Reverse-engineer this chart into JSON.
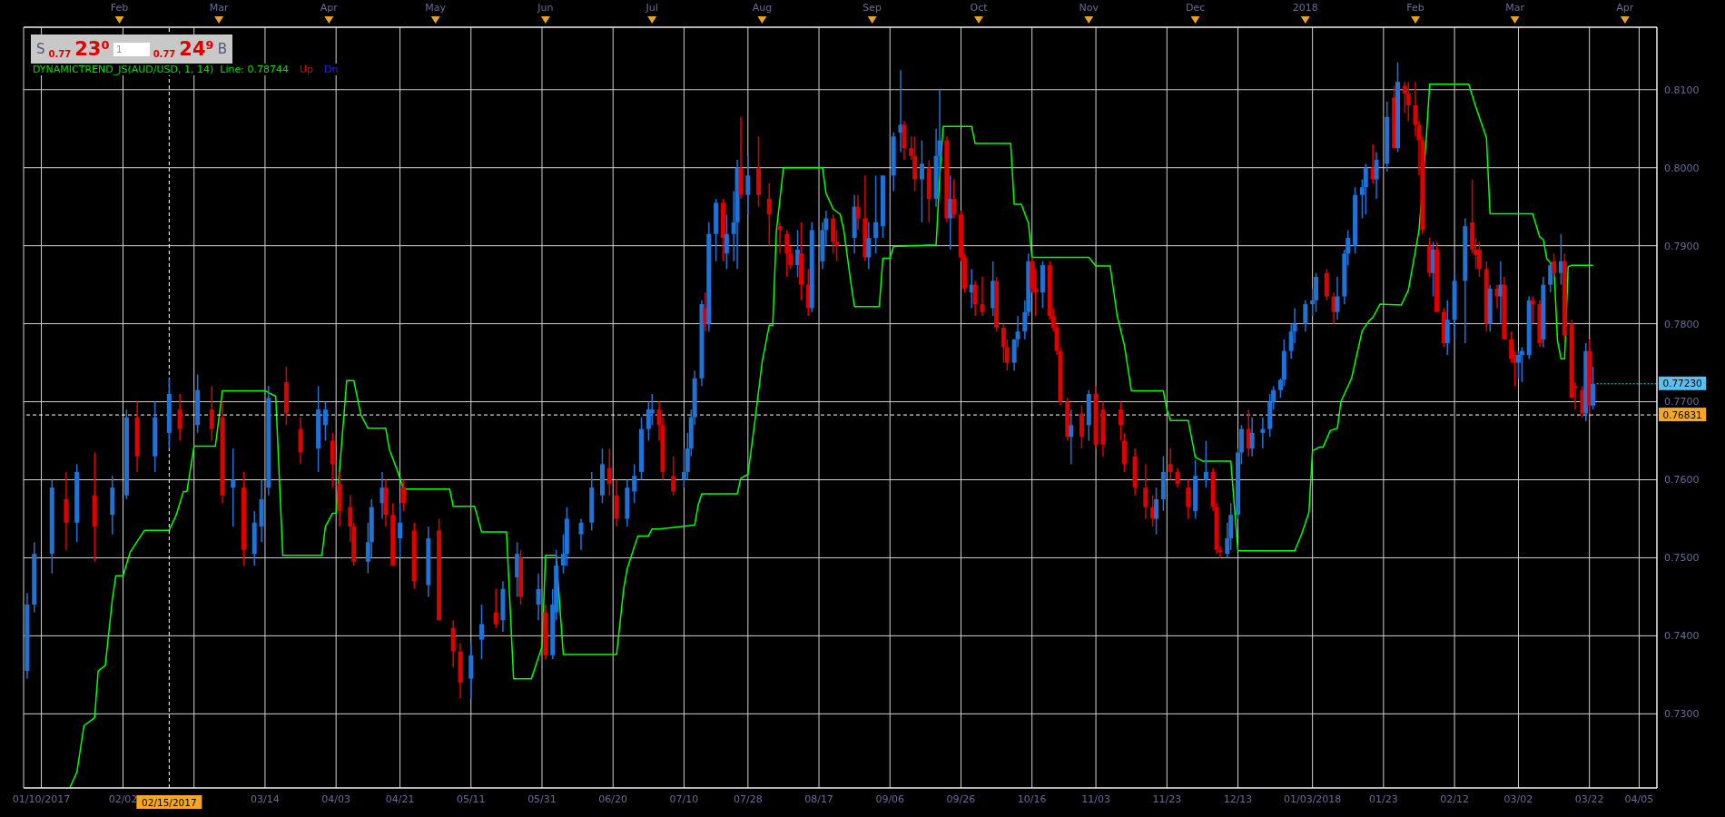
{
  "chart_data": {
    "type": "candlestick",
    "x": [
      "2017-01-06",
      "2017-01-08",
      "2017-01-13",
      "2017-01-17",
      "2017-01-20",
      "2017-01-25",
      "2017-01-30",
      "2017-02-03",
      "2017-02-06",
      "2017-02-11",
      "2017-02-15",
      "2017-02-18",
      "2017-02-23",
      "2017-02-27",
      "2017-03-02",
      "2017-03-05",
      "2017-03-08",
      "2017-03-11",
      "2017-03-13",
      "2017-03-15",
      "2017-03-20",
      "2017-03-24",
      "2017-03-29",
      "2017-03-31",
      "2017-04-02",
      "2017-04-04",
      "2017-04-07",
      "2017-04-08",
      "2017-04-12",
      "2017-04-13",
      "2017-04-16",
      "2017-04-17",
      "2017-04-19",
      "2017-04-21",
      "2017-04-22",
      "2017-04-25",
      "2017-04-29",
      "2017-05-02",
      "2017-05-06",
      "2017-05-08",
      "2017-05-11",
      "2017-05-14",
      "2017-05-18",
      "2017-05-20",
      "2017-05-24",
      "2017-05-25",
      "2017-05-30",
      "2017-06-01",
      "2017-06-03",
      "2017-06-04",
      "2017-06-06",
      "2017-06-07",
      "2017-06-11",
      "2017-06-14",
      "2017-06-17",
      "2017-06-19",
      "2017-06-21",
      "2017-06-24",
      "2017-06-26",
      "2017-06-28",
      "2017-06-30",
      "2017-07-01",
      "2017-07-03",
      "2017-07-04",
      "2017-07-07",
      "2017-07-10",
      "2017-07-11",
      "2017-07-12",
      "2017-07-13",
      "2017-07-15",
      "2017-07-16",
      "2017-07-17",
      "2017-07-19",
      "2017-07-21",
      "2017-07-22",
      "2017-07-24",
      "2017-07-25",
      "2017-07-26",
      "2017-07-28",
      "2017-07-31",
      "2017-08-03",
      "2017-08-06",
      "2017-08-08",
      "2017-08-09",
      "2017-08-11",
      "2017-08-12",
      "2017-08-14",
      "2017-08-15",
      "2017-08-18",
      "2017-08-19",
      "2017-08-21",
      "2017-08-22",
      "2017-08-27",
      "2017-08-28",
      "2017-08-30",
      "2017-08-31",
      "2017-09-02",
      "2017-09-04",
      "2017-09-07",
      "2017-09-09",
      "2017-09-10",
      "2017-09-12",
      "2017-09-13",
      "2017-09-15",
      "2017-09-17",
      "2017-09-19",
      "2017-09-20",
      "2017-09-22",
      "2017-09-23",
      "2017-09-24",
      "2017-09-26",
      "2017-09-27",
      "2017-09-29",
      "2017-09-30",
      "2017-10-02",
      "2017-10-05",
      "2017-10-06",
      "2017-10-08",
      "2017-10-09",
      "2017-10-11",
      "2017-10-12",
      "2017-10-14",
      "2017-10-15",
      "2017-10-16",
      "2017-10-17",
      "2017-10-19",
      "2017-10-21",
      "2017-10-22",
      "2017-10-23",
      "2017-10-24",
      "2017-10-26",
      "2017-10-27",
      "2017-10-30",
      "2017-11-01",
      "2017-11-03",
      "2017-11-05",
      "2017-11-10",
      "2017-11-11",
      "2017-11-14",
      "2017-11-17",
      "2017-11-19",
      "2017-11-20",
      "2017-11-22",
      "2017-11-24",
      "2017-11-26",
      "2017-11-29",
      "2017-12-01",
      "2017-12-04",
      "2017-12-06",
      "2017-12-07",
      "2017-12-08",
      "2017-12-10",
      "2017-12-11",
      "2017-12-13",
      "2017-12-14",
      "2017-12-16",
      "2017-12-17",
      "2017-12-20",
      "2017-12-22",
      "2017-12-23",
      "2017-12-25",
      "2017-12-26",
      "2017-12-28",
      "2017-12-29",
      "2018-01-01",
      "2018-01-03",
      "2018-01-04",
      "2018-01-07",
      "2018-01-09",
      "2018-01-10",
      "2018-01-12",
      "2018-01-13",
      "2018-01-15",
      "2018-01-17",
      "2018-01-18",
      "2018-01-20",
      "2018-01-21",
      "2018-01-24",
      "2018-01-26",
      "2018-01-27",
      "2018-01-29",
      "2018-01-30",
      "2018-02-01",
      "2018-02-02",
      "2018-02-03",
      "2018-02-05",
      "2018-02-06",
      "2018-02-07",
      "2018-02-09",
      "2018-02-10",
      "2018-02-12",
      "2018-02-15",
      "2018-02-17",
      "2018-02-18",
      "2018-02-19",
      "2018-02-21",
      "2018-02-22",
      "2018-02-24",
      "2018-02-25",
      "2018-02-26",
      "2018-02-28",
      "2018-03-01",
      "2018-03-02",
      "2018-03-03",
      "2018-03-05",
      "2018-03-06",
      "2018-03-08",
      "2018-03-09",
      "2018-03-11",
      "2018-03-12",
      "2018-03-14",
      "2018-03-15",
      "2018-03-17",
      "2018-03-18",
      "2018-03-20",
      "2018-03-21",
      "2018-03-22",
      "2018-03-23"
    ],
    "ohlc": [
      [
        0.7355,
        0.7455,
        0.7345,
        0.744
      ],
      [
        0.744,
        0.752,
        0.743,
        0.7505
      ],
      [
        0.7505,
        0.76,
        0.748,
        0.759
      ],
      [
        0.7575,
        0.761,
        0.751,
        0.7545
      ],
      [
        0.7545,
        0.762,
        0.752,
        0.761
      ],
      [
        0.758,
        0.7635,
        0.7495,
        0.754
      ],
      [
        0.7555,
        0.7605,
        0.753,
        0.759
      ],
      [
        0.758,
        0.769,
        0.7575,
        0.768
      ],
      [
        0.768,
        0.77,
        0.761,
        0.763
      ],
      [
        0.763,
        0.77,
        0.761,
        0.768
      ],
      [
        0.766,
        0.773,
        0.764,
        0.771
      ],
      [
        0.769,
        0.771,
        0.765,
        0.7665
      ],
      [
        0.767,
        0.7735,
        0.766,
        0.7715
      ],
      [
        0.769,
        0.772,
        0.765,
        0.7665
      ],
      [
        0.768,
        0.77,
        0.757,
        0.758
      ],
      [
        0.759,
        0.764,
        0.754,
        0.76
      ],
      [
        0.759,
        0.761,
        0.749,
        0.751
      ],
      [
        0.7505,
        0.756,
        0.749,
        0.7545
      ],
      [
        0.754,
        0.76,
        0.752,
        0.7575
      ],
      [
        0.759,
        0.772,
        0.758,
        0.7705
      ],
      [
        0.7725,
        0.7745,
        0.767,
        0.7685
      ],
      [
        0.7665,
        0.768,
        0.762,
        0.7635
      ],
      [
        0.764,
        0.772,
        0.761,
        0.769
      ],
      [
        0.767,
        0.77,
        0.765,
        0.769
      ],
      [
        0.765,
        0.766,
        0.759,
        0.762
      ],
      [
        0.7595,
        0.761,
        0.754,
        0.756
      ],
      [
        0.7565,
        0.758,
        0.752,
        0.754
      ],
      [
        0.754,
        0.7545,
        0.749,
        0.7495
      ],
      [
        0.7495,
        0.7545,
        0.748,
        0.752
      ],
      [
        0.752,
        0.7575,
        0.75,
        0.7565
      ],
      [
        0.757,
        0.761,
        0.755,
        0.759
      ],
      [
        0.759,
        0.76,
        0.754,
        0.7555
      ],
      [
        0.7555,
        0.757,
        0.749,
        0.749
      ],
      [
        0.7525,
        0.757,
        0.75,
        0.7545
      ],
      [
        0.759,
        0.76,
        0.756,
        0.757
      ],
      [
        0.7535,
        0.7545,
        0.746,
        0.747
      ],
      [
        0.7465,
        0.754,
        0.745,
        0.7525
      ],
      [
        0.7535,
        0.755,
        0.742,
        0.742
      ],
      [
        0.741,
        0.742,
        0.736,
        0.738
      ],
      [
        0.738,
        0.739,
        0.732,
        0.734
      ],
      [
        0.7345,
        0.739,
        0.732,
        0.7375
      ],
      [
        0.7395,
        0.744,
        0.737,
        0.7415
      ],
      [
        0.743,
        0.746,
        0.741,
        0.7415
      ],
      [
        0.742,
        0.747,
        0.7405,
        0.746
      ],
      [
        0.7475,
        0.752,
        0.745,
        0.7505
      ],
      [
        0.75,
        0.751,
        0.744,
        0.745
      ],
      [
        0.744,
        0.748,
        0.742,
        0.746
      ],
      [
        0.743,
        0.744,
        0.737,
        0.7375
      ],
      [
        0.7375,
        0.746,
        0.737,
        0.744
      ],
      [
        0.743,
        0.751,
        0.742,
        0.749
      ],
      [
        0.749,
        0.753,
        0.748,
        0.7505
      ],
      [
        0.7505,
        0.7565,
        0.749,
        0.755
      ],
      [
        0.753,
        0.755,
        0.751,
        0.7545
      ],
      [
        0.7545,
        0.761,
        0.7535,
        0.759
      ],
      [
        0.758,
        0.764,
        0.757,
        0.762
      ],
      [
        0.7615,
        0.764,
        0.758,
        0.7595
      ],
      [
        0.758,
        0.76,
        0.754,
        0.755
      ],
      [
        0.755,
        0.76,
        0.754,
        0.759
      ],
      [
        0.7585,
        0.762,
        0.757,
        0.7605
      ],
      [
        0.761,
        0.768,
        0.76,
        0.7665
      ],
      [
        0.7665,
        0.77,
        0.765,
        0.769
      ],
      [
        0.7685,
        0.771,
        0.767,
        0.769
      ],
      [
        0.769,
        0.77,
        0.765,
        0.767
      ],
      [
        0.767,
        0.768,
        0.76,
        0.761
      ],
      [
        0.7605,
        0.763,
        0.758,
        0.7585
      ],
      [
        0.76,
        0.764,
        0.759,
        0.761
      ],
      [
        0.761,
        0.766,
        0.76,
        0.764
      ],
      [
        0.764,
        0.769,
        0.763,
        0.768
      ],
      [
        0.768,
        0.774,
        0.767,
        0.773
      ],
      [
        0.773,
        0.783,
        0.772,
        0.7825
      ],
      [
        0.782,
        0.784,
        0.779,
        0.78
      ],
      [
        0.78,
        0.793,
        0.779,
        0.7915
      ],
      [
        0.7915,
        0.796,
        0.788,
        0.7955
      ],
      [
        0.7955,
        0.796,
        0.788,
        0.791
      ],
      [
        0.789,
        0.794,
        0.787,
        0.7915
      ],
      [
        0.7915,
        0.797,
        0.788,
        0.793
      ],
      [
        0.793,
        0.801,
        0.787,
        0.8
      ],
      [
        0.8,
        0.8065,
        0.796,
        0.7965
      ],
      [
        0.7965,
        0.8015,
        0.794,
        0.799
      ],
      [
        0.8,
        0.804,
        0.795,
        0.7965
      ],
      [
        0.796,
        0.798,
        0.79,
        0.794
      ],
      [
        0.7925,
        0.793,
        0.789,
        0.792
      ],
      [
        0.7915,
        0.792,
        0.786,
        0.789
      ],
      [
        0.789,
        0.79,
        0.787,
        0.7875
      ],
      [
        0.7875,
        0.792,
        0.786,
        0.7895
      ],
      [
        0.789,
        0.793,
        0.783,
        0.785
      ],
      [
        0.785,
        0.787,
        0.781,
        0.782
      ],
      [
        0.782,
        0.793,
        0.7815,
        0.792
      ],
      [
        0.788,
        0.793,
        0.787,
        0.792
      ],
      [
        0.792,
        0.7945,
        0.79,
        0.7935
      ],
      [
        0.7935,
        0.794,
        0.789,
        0.7905
      ],
      [
        0.7905,
        0.792,
        0.788,
        0.79
      ],
      [
        0.791,
        0.7965,
        0.789,
        0.795
      ],
      [
        0.795,
        0.7965,
        0.792,
        0.7935
      ],
      [
        0.7935,
        0.799,
        0.788,
        0.7885
      ],
      [
        0.7885,
        0.793,
        0.787,
        0.791
      ],
      [
        0.791,
        0.799,
        0.789,
        0.793
      ],
      [
        0.7925,
        0.799,
        0.791,
        0.799
      ],
      [
        0.799,
        0.8045,
        0.797,
        0.804
      ],
      [
        0.8045,
        0.8125,
        0.802,
        0.8055
      ],
      [
        0.8055,
        0.806,
        0.801,
        0.8025
      ],
      [
        0.8025,
        0.804,
        0.801,
        0.8015
      ],
      [
        0.8015,
        0.804,
        0.797,
        0.7985
      ],
      [
        0.7985,
        0.8035,
        0.793,
        0.8005
      ],
      [
        0.8,
        0.801,
        0.793,
        0.796
      ],
      [
        0.796,
        0.805,
        0.795,
        0.8015
      ],
      [
        0.8015,
        0.81,
        0.799,
        0.8035
      ],
      [
        0.8035,
        0.804,
        0.793,
        0.7935
      ],
      [
        0.7935,
        0.799,
        0.7895,
        0.796
      ],
      [
        0.796,
        0.7985,
        0.7935,
        0.794
      ],
      [
        0.794,
        0.7945,
        0.788,
        0.7885
      ],
      [
        0.7885,
        0.789,
        0.784,
        0.7845
      ],
      [
        0.784,
        0.787,
        0.782,
        0.785
      ],
      [
        0.785,
        0.7855,
        0.781,
        0.7825
      ],
      [
        0.7825,
        0.786,
        0.781,
        0.7815
      ],
      [
        0.782,
        0.788,
        0.781,
        0.7855
      ],
      [
        0.7855,
        0.786,
        0.779,
        0.7795
      ],
      [
        0.7795,
        0.78,
        0.775,
        0.777
      ],
      [
        0.777,
        0.778,
        0.774,
        0.775
      ],
      [
        0.775,
        0.778,
        0.774,
        0.778
      ],
      [
        0.778,
        0.781,
        0.777,
        0.779
      ],
      [
        0.779,
        0.783,
        0.778,
        0.7815
      ],
      [
        0.7815,
        0.789,
        0.781,
        0.788
      ],
      [
        0.788,
        0.7885,
        0.784,
        0.7845
      ],
      [
        0.7845,
        0.787,
        0.781,
        0.784
      ],
      [
        0.784,
        0.788,
        0.782,
        0.7875
      ],
      [
        0.7875,
        0.788,
        0.7805,
        0.781
      ],
      [
        0.781,
        0.782,
        0.779,
        0.7795
      ],
      [
        0.7795,
        0.78,
        0.776,
        0.7765
      ],
      [
        0.7765,
        0.777,
        0.7695,
        0.77
      ],
      [
        0.77,
        0.7705,
        0.765,
        0.7655
      ],
      [
        0.7655,
        0.769,
        0.762,
        0.767
      ],
      [
        0.7685,
        0.7695,
        0.764,
        0.7655
      ],
      [
        0.767,
        0.7715,
        0.765,
        0.771
      ],
      [
        0.771,
        0.772,
        0.764,
        0.7645
      ],
      [
        0.769,
        0.77,
        0.763,
        0.7645
      ],
      [
        0.769,
        0.77,
        0.765,
        0.767
      ],
      [
        0.765,
        0.766,
        0.761,
        0.762
      ],
      [
        0.763,
        0.764,
        0.758,
        0.759
      ],
      [
        0.759,
        0.762,
        0.755,
        0.7565
      ],
      [
        0.7565,
        0.758,
        0.754,
        0.755
      ],
      [
        0.755,
        0.759,
        0.753,
        0.7575
      ],
      [
        0.7575,
        0.763,
        0.756,
        0.761
      ],
      [
        0.762,
        0.764,
        0.76,
        0.761
      ],
      [
        0.761,
        0.7615,
        0.759,
        0.7595
      ],
      [
        0.759,
        0.76,
        0.755,
        0.7565
      ],
      [
        0.756,
        0.7625,
        0.755,
        0.7605
      ],
      [
        0.76,
        0.765,
        0.759,
        0.761
      ],
      [
        0.761,
        0.7615,
        0.756,
        0.7565
      ],
      [
        0.7565,
        0.757,
        0.7505,
        0.751
      ],
      [
        0.751,
        0.7515,
        0.75,
        0.7507
      ],
      [
        0.7505,
        0.7545,
        0.75,
        0.7525
      ],
      [
        0.7525,
        0.757,
        0.751,
        0.7555
      ],
      [
        0.7555,
        0.764,
        0.755,
        0.7635
      ],
      [
        0.7635,
        0.767,
        0.762,
        0.7665
      ],
      [
        0.7665,
        0.769,
        0.763,
        0.764
      ],
      [
        0.764,
        0.768,
        0.763,
        0.766
      ],
      [
        0.766,
        0.768,
        0.764,
        0.7665
      ],
      [
        0.7665,
        0.771,
        0.7655,
        0.77
      ],
      [
        0.77,
        0.772,
        0.769,
        0.7715
      ],
      [
        0.7715,
        0.773,
        0.7705,
        0.7728
      ],
      [
        0.7728,
        0.778,
        0.772,
        0.7765
      ],
      [
        0.7765,
        0.78,
        0.7755,
        0.779
      ],
      [
        0.779,
        0.782,
        0.7775,
        0.78
      ],
      [
        0.78,
        0.783,
        0.779,
        0.7825
      ],
      [
        0.7825,
        0.7845,
        0.781,
        0.783
      ],
      [
        0.783,
        0.7865,
        0.7815,
        0.786
      ],
      [
        0.7865,
        0.787,
        0.783,
        0.7835
      ],
      [
        0.7835,
        0.784,
        0.78,
        0.7815
      ],
      [
        0.7815,
        0.786,
        0.7805,
        0.7835
      ],
      [
        0.7835,
        0.7895,
        0.7825,
        0.789
      ],
      [
        0.789,
        0.792,
        0.7875,
        0.791
      ],
      [
        0.79,
        0.7975,
        0.789,
        0.7965
      ],
      [
        0.7965,
        0.7985,
        0.7935,
        0.7975
      ],
      [
        0.7975,
        0.8005,
        0.794,
        0.8
      ],
      [
        0.8,
        0.803,
        0.798,
        0.7985
      ],
      [
        0.7985,
        0.802,
        0.796,
        0.801
      ],
      [
        0.8005,
        0.8085,
        0.7995,
        0.8065
      ],
      [
        0.809,
        0.8105,
        0.8025,
        0.8025
      ],
      [
        0.8025,
        0.8135,
        0.802,
        0.811
      ],
      [
        0.8105,
        0.811,
        0.807,
        0.8095
      ],
      [
        0.8095,
        0.811,
        0.806,
        0.808
      ],
      [
        0.808,
        0.811,
        0.804,
        0.8055
      ],
      [
        0.8055,
        0.806,
        0.799,
        0.8035
      ],
      [
        0.8035,
        0.804,
        0.7915,
        0.792
      ],
      [
        0.79,
        0.791,
        0.786,
        0.7865
      ],
      [
        0.7865,
        0.7905,
        0.7835,
        0.7895
      ],
      [
        0.7895,
        0.7905,
        0.7815,
        0.7815
      ],
      [
        0.7815,
        0.782,
        0.777,
        0.7775
      ],
      [
        0.7775,
        0.783,
        0.776,
        0.7805
      ],
      [
        0.7805,
        0.7865,
        0.778,
        0.7855
      ],
      [
        0.7855,
        0.7935,
        0.7775,
        0.7925
      ],
      [
        0.793,
        0.7985,
        0.789,
        0.7895
      ],
      [
        0.7895,
        0.791,
        0.787,
        0.7888
      ],
      [
        0.7895,
        0.7905,
        0.786,
        0.787
      ],
      [
        0.787,
        0.788,
        0.779,
        0.78
      ],
      [
        0.78,
        0.785,
        0.779,
        0.7845
      ],
      [
        0.7845,
        0.785,
        0.782,
        0.7835
      ],
      [
        0.7835,
        0.788,
        0.78,
        0.785
      ],
      [
        0.785,
        0.786,
        0.778,
        0.778
      ],
      [
        0.778,
        0.779,
        0.775,
        0.7755
      ],
      [
        0.776,
        0.7765,
        0.772,
        0.775
      ],
      [
        0.775,
        0.7765,
        0.773,
        0.776
      ],
      [
        0.776,
        0.777,
        0.7725,
        0.7765
      ],
      [
        0.776,
        0.7835,
        0.7755,
        0.783
      ],
      [
        0.783,
        0.7835,
        0.78,
        0.7825
      ],
      [
        0.7825,
        0.783,
        0.777,
        0.7775
      ],
      [
        0.778,
        0.786,
        0.777,
        0.785
      ],
      [
        0.785,
        0.788,
        0.784,
        0.7875
      ],
      [
        0.788,
        0.789,
        0.786,
        0.7865
      ],
      [
        0.7865,
        0.7915,
        0.785,
        0.788
      ],
      [
        0.788,
        0.789,
        0.778,
        0.7785
      ],
      [
        0.78,
        0.7805,
        0.7705,
        0.7705
      ],
      [
        0.772,
        0.7725,
        0.769,
        0.7718
      ],
      [
        0.7715,
        0.772,
        0.768,
        0.7685
      ],
      [
        0.7685,
        0.7775,
        0.7675,
        0.7765
      ],
      [
        0.7765,
        0.778,
        0.7685,
        0.7695
      ],
      [
        0.7695,
        0.7745,
        0.769,
        0.7723
      ]
    ],
    "colors": [
      "#1f72d6",
      "#1f72d6",
      "#1f72d6",
      "#e00000",
      "#1f72d6",
      "#e00000",
      "#1f72d6",
      "#1f72d6",
      "#e00000",
      "#1f72d6",
      "#1f72d6",
      "#e00000",
      "#1f72d6",
      "#e00000",
      "#e00000",
      "#1f72d6",
      "#e00000",
      "#1f72d6",
      "#1f72d6",
      "#1f72d6",
      "#e00000",
      "#e00000",
      "#1f72d6",
      "#1f72d6",
      "#e00000",
      "#e00000",
      "#e00000",
      "#e00000",
      "#1f72d6",
      "#1f72d6",
      "#1f72d6",
      "#e00000",
      "#e00000",
      "#1f72d6",
      "#e00000",
      "#e00000",
      "#1f72d6",
      "#e00000",
      "#e00000",
      "#e00000",
      "#1f72d6",
      "#1f72d6",
      "#e00000",
      "#1f72d6",
      "#1f72d6",
      "#e00000",
      "#1f72d6",
      "#e00000",
      "#1f72d6",
      "#1f72d6",
      "#1f72d6",
      "#1f72d6",
      "#1f72d6",
      "#1f72d6",
      "#1f72d6",
      "#e00000",
      "#e00000",
      "#1f72d6",
      "#1f72d6",
      "#1f72d6",
      "#1f72d6",
      "#1f72d6",
      "#e00000",
      "#e00000",
      "#e00000",
      "#1f72d6",
      "#1f72d6",
      "#1f72d6",
      "#1f72d6",
      "#1f72d6",
      "#e00000",
      "#1f72d6",
      "#1f72d6",
      "#e00000",
      "#1f72d6",
      "#1f72d6",
      "#1f72d6",
      "#e00000",
      "#1f72d6",
      "#e00000",
      "#e00000",
      "#e00000",
      "#e00000",
      "#e00000",
      "#1f72d6",
      "#e00000",
      "#e00000",
      "#1f72d6",
      "#1f72d6",
      "#1f72d6",
      "#e00000",
      "#e00000",
      "#1f72d6",
      "#e00000",
      "#e00000",
      "#1f72d6",
      "#1f72d6",
      "#1f72d6",
      "#1f72d6",
      "#1f72d6",
      "#e00000",
      "#e00000",
      "#e00000",
      "#1f72d6",
      "#e00000",
      "#1f72d6",
      "#1f72d6",
      "#e00000",
      "#1f72d6",
      "#e00000",
      "#e00000",
      "#e00000",
      "#1f72d6",
      "#e00000",
      "#e00000",
      "#1f72d6",
      "#e00000",
      "#e00000",
      "#e00000",
      "#1f72d6",
      "#1f72d6",
      "#1f72d6",
      "#1f72d6",
      "#e00000",
      "#e00000",
      "#1f72d6",
      "#e00000",
      "#e00000",
      "#e00000",
      "#e00000",
      "#e00000",
      "#1f72d6",
      "#e00000",
      "#1f72d6",
      "#e00000",
      "#e00000",
      "#e00000",
      "#e00000",
      "#e00000",
      "#e00000",
      "#e00000",
      "#1f72d6",
      "#1f72d6",
      "#e00000",
      "#e00000",
      "#e00000",
      "#1f72d6",
      "#1f72d6",
      "#e00000",
      "#e00000",
      "#e00000",
      "#1f72d6",
      "#1f72d6",
      "#1f72d6",
      "#1f72d6",
      "#e00000",
      "#1f72d6",
      "#1f72d6",
      "#1f72d6",
      "#1f72d6",
      "#1f72d6",
      "#1f72d6",
      "#1f72d6",
      "#1f72d6",
      "#1f72d6",
      "#1f72d6",
      "#1f72d6",
      "#e00000",
      "#e00000",
      "#1f72d6",
      "#1f72d6",
      "#1f72d6",
      "#1f72d6",
      "#1f72d6",
      "#1f72d6",
      "#e00000",
      "#1f72d6",
      "#1f72d6",
      "#e00000",
      "#1f72d6",
      "#e00000",
      "#e00000",
      "#e00000",
      "#e00000",
      "#e00000",
      "#e00000",
      "#1f72d6",
      "#e00000",
      "#e00000",
      "#1f72d6",
      "#1f72d6",
      "#1f72d6",
      "#e00000",
      "#e00000",
      "#e00000",
      "#e00000",
      "#1f72d6",
      "#e00000",
      "#1f72d6",
      "#e00000",
      "#e00000",
      "#e00000",
      "#1f72d6",
      "#1f72d6",
      "#1f72d6",
      "#e00000",
      "#e00000",
      "#1f72d6",
      "#1f72d6",
      "#e00000",
      "#1f72d6",
      "#e00000",
      "#e00000",
      "#e00000",
      "#e00000",
      "#1f72d6",
      "#e00000",
      "#1f72d6"
    ],
    "series": [
      {
        "type": "line",
        "color": "#00ff00",
        "x": [
          "2017-01-18",
          "2017-01-20",
          "2017-01-22",
          "2017-01-25",
          "2017-01-26",
          "2017-01-28",
          "2017-01-30",
          "2017-01-31",
          "2017-02-02",
          "2017-02-04",
          "2017-02-08",
          "2017-02-15",
          "2017-02-17",
          "2017-02-19",
          "2017-02-20",
          "2017-02-22",
          "2017-02-28",
          "2017-03-02",
          "2017-03-14",
          "2017-03-17",
          "2017-03-19",
          "2017-03-30",
          "2017-03-31",
          "2017-04-02",
          "2017-04-03",
          "2017-04-06",
          "2017-04-08",
          "2017-04-10",
          "2017-04-12",
          "2017-04-17",
          "2017-04-18",
          "2017-04-20",
          "2017-04-22",
          "2017-05-05",
          "2017-05-06",
          "2017-05-12",
          "2017-05-14",
          "2017-05-21",
          "2017-05-23",
          "2017-05-28",
          "2017-05-31",
          "2017-06-01",
          "2017-06-04",
          "2017-06-06",
          "2017-06-21",
          "2017-06-23",
          "2017-06-24",
          "2017-06-27",
          "2017-06-30",
          "2017-07-01",
          "2017-07-03",
          "2017-07-13",
          "2017-07-14",
          "2017-07-15",
          "2017-07-25",
          "2017-07-26",
          "2017-07-28",
          "2017-07-30",
          "2017-08-01",
          "2017-08-03",
          "2017-08-04",
          "2017-08-05",
          "2017-08-07",
          "2017-08-18",
          "2017-08-19",
          "2017-08-21",
          "2017-08-23",
          "2017-08-24",
          "2017-08-26",
          "2017-08-27",
          "2017-09-03",
          "2017-09-04",
          "2017-09-06",
          "2017-09-07",
          "2017-09-19",
          "2017-09-20",
          "2017-09-21",
          "2017-09-29",
          "2017-09-30",
          "2017-10-10",
          "2017-10-11",
          "2017-10-13",
          "2017-10-15",
          "2017-10-16",
          "2017-11-01",
          "2017-11-03",
          "2017-11-07",
          "2017-11-09",
          "2017-11-11",
          "2017-11-13",
          "2017-11-22",
          "2017-11-23",
          "2017-11-24",
          "2017-11-29",
          "2017-12-01",
          "2017-12-03",
          "2017-12-11",
          "2017-12-13",
          "2017-12-29",
          "2017-12-31",
          "2018-01-02",
          "2018-01-03",
          "2018-01-05",
          "2018-01-06",
          "2018-01-08",
          "2018-01-10",
          "2018-01-11",
          "2018-01-14",
          "2018-01-17",
          "2018-01-19",
          "2018-01-20",
          "2018-01-22",
          "2018-01-28",
          "2018-01-30",
          "2018-02-01",
          "2018-02-02",
          "2018-02-04",
          "2018-02-05",
          "2018-02-16",
          "2018-02-18",
          "2018-02-21",
          "2018-02-22",
          "2018-03-06",
          "2018-03-08",
          "2018-03-09",
          "2018-03-10",
          "2018-03-12",
          "2018-03-13",
          "2018-03-14",
          "2018-03-15",
          "2018-03-16",
          "2018-03-17",
          "2018-03-23"
        ],
        "values": [
          0.7205,
          0.7225,
          0.7285,
          0.7295,
          0.7355,
          0.7362,
          0.7447,
          0.7477,
          0.7477,
          0.7507,
          0.7535,
          0.7535,
          0.7555,
          0.7585,
          0.7585,
          0.7643,
          0.7643,
          0.7714,
          0.7714,
          0.7707,
          0.7503,
          0.7503,
          0.754,
          0.7557,
          0.7557,
          0.7727,
          0.7727,
          0.7683,
          0.7666,
          0.7666,
          0.7639,
          0.7615,
          0.7588,
          0.7588,
          0.7566,
          0.7566,
          0.7533,
          0.7533,
          0.7345,
          0.7345,
          0.7386,
          0.7503,
          0.7503,
          0.7376,
          0.7376,
          0.746,
          0.7486,
          0.7528,
          0.7528,
          0.7537,
          0.7537,
          0.7542,
          0.7568,
          0.7582,
          0.7582,
          0.7602,
          0.7607,
          0.7676,
          0.7751,
          0.7798,
          0.7798,
          0.7918,
          0.8,
          0.8,
          0.7967,
          0.7947,
          0.794,
          0.792,
          0.7852,
          0.7822,
          0.7822,
          0.7884,
          0.7884,
          0.7899,
          0.7901,
          0.7987,
          0.8053,
          0.8053,
          0.8031,
          0.8031,
          0.7953,
          0.7953,
          0.7929,
          0.7885,
          0.7885,
          0.7874,
          0.7874,
          0.781,
          0.7773,
          0.7714,
          0.7714,
          0.769,
          0.7676,
          0.7676,
          0.7629,
          0.7624,
          0.7624,
          0.7509,
          0.7509,
          0.7531,
          0.7558,
          0.7637,
          0.7642,
          0.7642,
          0.7663,
          0.7666,
          0.77,
          0.773,
          0.7791,
          0.7804,
          0.7808,
          0.7825,
          0.7824,
          0.7843,
          0.7894,
          0.792,
          0.8034,
          0.8107,
          0.8107,
          0.8078,
          0.8038,
          0.7941,
          0.7941,
          0.7911,
          0.7908,
          0.7883,
          0.7873,
          0.7778,
          0.7755,
          0.7755,
          0.7873,
          0.7875,
          0.7875
        ]
      }
    ],
    "xlim": [
      "2017-01-05",
      "2018-04-10"
    ],
    "xticks": [
      {
        "value": "2017-01-10",
        "label": "01/10/2017"
      },
      {
        "value": "2017-02-02",
        "label": "02/02"
      },
      {
        "value": "2017-02-22",
        "label": null
      },
      {
        "value": "2017-03-14",
        "label": "03/14"
      },
      {
        "value": "2017-04-03",
        "label": "04/03"
      },
      {
        "value": "2017-04-21",
        "label": "04/21"
      },
      {
        "value": "2017-05-11",
        "label": "05/11"
      },
      {
        "value": "2017-05-31",
        "label": "05/31"
      },
      {
        "value": "2017-06-20",
        "label": "06/20"
      },
      {
        "value": "2017-07-10",
        "label": "07/10"
      },
      {
        "value": "2017-07-28",
        "label": "07/28"
      },
      {
        "value": "2017-08-17",
        "label": "08/17"
      },
      {
        "value": "2017-09-06",
        "label": "09/06"
      },
      {
        "value": "2017-09-26",
        "label": "09/26"
      },
      {
        "value": "2017-10-16",
        "label": "10/16"
      },
      {
        "value": "2017-11-03",
        "label": "11/03"
      },
      {
        "value": "2017-11-23",
        "label": "11/23"
      },
      {
        "value": "2017-12-13",
        "label": "12/13"
      },
      {
        "value": "2018-01-03",
        "label": "01/03/2018"
      },
      {
        "value": "2018-01-23",
        "label": "01/23"
      },
      {
        "value": "2018-02-12",
        "label": "02/12"
      },
      {
        "value": "2018-03-02",
        "label": "03/02"
      },
      {
        "value": "2018-03-22",
        "label": "03/22"
      },
      {
        "value": "2018-04-05",
        "label": "04/05"
      }
    ],
    "x2lim": [
      "2017-01-05",
      "2018-04-10"
    ],
    "x2ticks": [
      {
        "value": "2017-02-01",
        "label": "Feb"
      },
      {
        "value": "2017-03-01",
        "label": "Mar"
      },
      {
        "value": "2017-04-01",
        "label": "Apr"
      },
      {
        "value": "2017-05-01",
        "label": "May"
      },
      {
        "value": "2017-06-01",
        "label": "Jun"
      },
      {
        "value": "2017-07-01",
        "label": "Jul"
      },
      {
        "value": "2017-08-01",
        "label": "Aug"
      },
      {
        "value": "2017-09-01",
        "label": "Sep"
      },
      {
        "value": "2017-10-01",
        "label": "Oct"
      },
      {
        "value": "2017-11-01",
        "label": "Nov"
      },
      {
        "value": "2017-12-01",
        "label": "Dec"
      },
      {
        "value": "2018-01-01",
        "label": "2018"
      },
      {
        "value": "2018-02-01",
        "label": "Feb"
      },
      {
        "value": "2018-03-01",
        "label": "Mar"
      },
      {
        "value": "2018-04-01",
        "label": "Apr"
      }
    ],
    "ylim": [
      0.7205,
      0.818
    ],
    "yticks": [
      {
        "value": 0.73,
        "label": "0.7300"
      },
      {
        "value": 0.74,
        "label": "0.7400"
      },
      {
        "value": 0.75,
        "label": "0.7500"
      },
      {
        "value": 0.76,
        "label": "0.7600"
      },
      {
        "value": 0.77,
        "label": "0.7700"
      },
      {
        "value": 0.78,
        "label": "0.7800"
      },
      {
        "value": 0.79,
        "label": "0.7900"
      },
      {
        "value": 0.8,
        "label": "0.8000"
      },
      {
        "value": 0.81,
        "label": "0.8100"
      }
    ],
    "grid": true,
    "ref_lines": [
      {
        "axis": "x",
        "value": "2017-02-15",
        "label": "02/15/2017",
        "color": "#ffffff",
        "line_style": "dashed"
      },
      {
        "axis": "y",
        "value": 0.76831,
        "label": "0.76831",
        "color": "#ffffff",
        "line_style": "dashed"
      }
    ],
    "annotations": [
      "S",
      "0.77",
      "23⁰",
      "1",
      "0.77",
      "24⁹",
      "B",
      "DYNAMICTREND_JS(AUD/USD, 1, 14)  Line: 0.78744",
      "Up",
      "Dn",
      {
        "text": "0.77230",
        "x": "2018-03-23",
        "y": 0.7723
      }
    ]
  }
}
